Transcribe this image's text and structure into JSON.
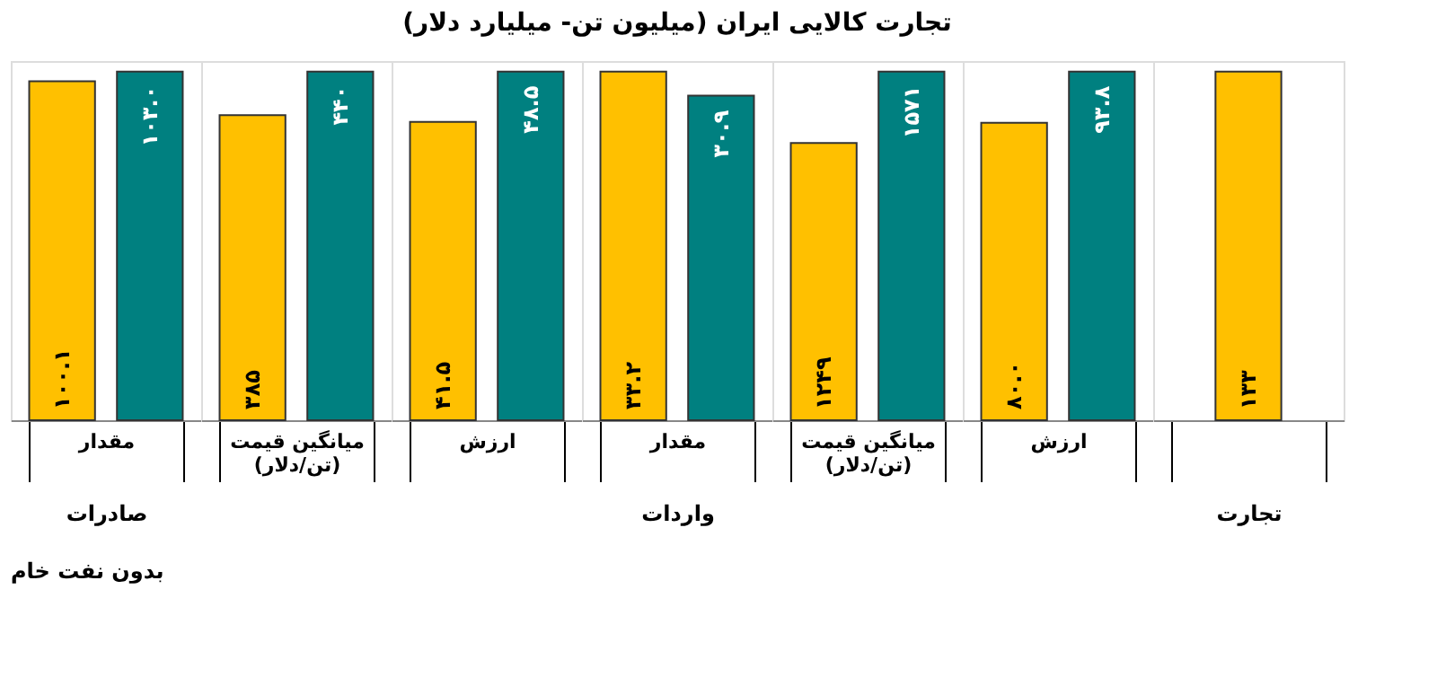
{
  "chart_data": [
    {
      "type": "bar",
      "categories": [
        "مقدار"
      ],
      "xlabel": "صادرات",
      "annotations": [
        "بدون نفت خام"
      ],
      "series": [
        {
          "color": "#ffc000",
          "values": [
            100.1
          ],
          "value_labels": [
            "۱۰۰.۱"
          ]
        },
        {
          "color": "#008080",
          "values": [
            103.0
          ],
          "value_labels": [
            "۱۰۳.۰"
          ]
        }
      ]
    },
    {
      "type": "bar",
      "categories": [
        "میانگین قیمت (تن/دلار)"
      ],
      "series": [
        {
          "color": "#ffc000",
          "values": [
            385
          ],
          "value_labels": [
            "۳۸۵"
          ]
        },
        {
          "color": "#008080",
          "values": [
            440
          ],
          "value_labels": [
            "۴۴۰"
          ]
        }
      ]
    },
    {
      "type": "bar",
      "categories": [
        "ارزش"
      ],
      "series": [
        {
          "color": "#ffc000",
          "values": [
            41.5
          ],
          "value_labels": [
            "۴۱.۵"
          ]
        },
        {
          "color": "#008080",
          "values": [
            48.5
          ],
          "value_labels": [
            "۴۸.۵"
          ]
        }
      ]
    },
    {
      "type": "bar",
      "title": "تجارت کالایی ایران (میلیون تن- میلیارد دلار)",
      "categories": [
        "مقدار"
      ],
      "xlabel": "واردات",
      "series": [
        {
          "color": "#ffc000",
          "values": [
            33.2
          ],
          "value_labels": [
            "۳۳.۲"
          ]
        },
        {
          "color": "#008080",
          "values": [
            30.9
          ],
          "value_labels": [
            "۳۰.۹"
          ]
        }
      ]
    },
    {
      "type": "bar",
      "categories": [
        "میانگین قیمت (تن/دلار)"
      ],
      "series": [
        {
          "color": "#ffc000",
          "values": [
            1249
          ],
          "value_labels": [
            "۱۲۴۹"
          ]
        },
        {
          "color": "#008080",
          "values": [
            1571
          ],
          "value_labels": [
            "۱۵۷۱"
          ]
        }
      ]
    },
    {
      "type": "bar",
      "categories": [
        "ارزش"
      ],
      "series": [
        {
          "color": "#ffc000",
          "values": [
            80.0
          ],
          "value_labels": [
            "۸۰.۰"
          ]
        },
        {
          "color": "#008080",
          "values": [
            93.8
          ],
          "value_labels": [
            "۹۳.۸"
          ]
        }
      ]
    },
    {
      "type": "bar",
      "categories": [
        null
      ],
      "xlabel": "تجارت",
      "series": [
        {
          "color": "#ffc000",
          "values": [
            133
          ],
          "value_labels": [
            "۱۳۳"
          ]
        }
      ]
    }
  ]
}
